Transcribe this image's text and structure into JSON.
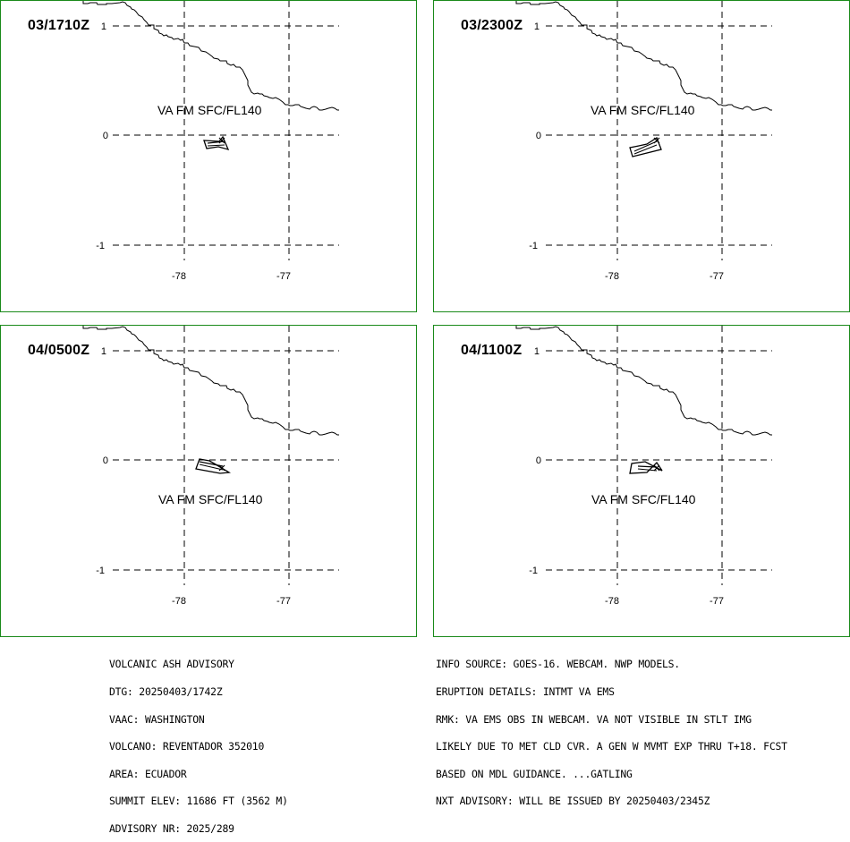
{
  "panels": [
    {
      "time": "03/1710Z",
      "label": "VA FM SFC/FL140"
    },
    {
      "time": "03/2300Z",
      "label": "VA FM SFC/FL140"
    },
    {
      "time": "04/0500Z",
      "label": "VA FM SFC/FL140"
    },
    {
      "time": "04/1100Z",
      "label": "VA FM SFC/FL140"
    }
  ],
  "axes": {
    "lat_ticks": [
      "1",
      "0",
      "-1"
    ],
    "lon_ticks": [
      "-78",
      "-77"
    ]
  },
  "advisory_left": [
    "VOLCANIC ASH ADVISORY",
    "DTG: 20250403/1742Z",
    "VAAC: WASHINGTON",
    "VOLCANO: REVENTADOR 352010",
    "AREA: ECUADOR",
    "SUMMIT ELEV: 11686 FT (3562 M)",
    "ADVISORY NR: 2025/289"
  ],
  "advisory_right": [
    "INFO SOURCE: GOES-16. WEBCAM. NWP MODELS.",
    "ERUPTION DETAILS: INTMT VA EMS",
    "RMK: VA EMS OBS IN WEBCAM. VA NOT VISIBLE IN STLT IMG",
    "LIKELY DUE TO MET CLD CVR. A GEN W MVMT EXP THRU T+18. FCST",
    "BASED ON MDL GUIDANCE. ...GATLING",
    "NXT ADVISORY: WILL BE ISSUED BY 20250403/2345Z"
  ],
  "colors": {
    "panel_border": "#1a8a1a"
  }
}
